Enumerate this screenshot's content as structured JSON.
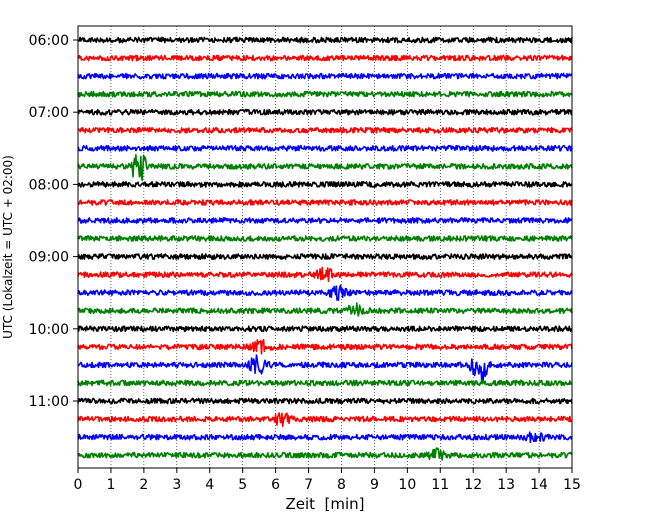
{
  "chart_data": {
    "type": "line",
    "title": "",
    "xlabel": "Zeit  [min]",
    "ylabel": "UTC (Lokalzeit = UTC + 02:00)",
    "xlim": [
      0,
      15
    ],
    "x_ticks": [
      0,
      1,
      2,
      3,
      4,
      5,
      6,
      7,
      8,
      9,
      10,
      11,
      12,
      13,
      14,
      15
    ],
    "y_tick_labels": [
      "06:00",
      "07:00",
      "08:00",
      "09:00",
      "10:00",
      "11:00"
    ],
    "grid": "vertical dotted at each minute",
    "trace_interval_min": 15,
    "trace_colors": [
      "#000000",
      "#ff0000",
      "#0000ff",
      "#008000"
    ],
    "traces": [
      {
        "start": "06:00",
        "color": "#000000"
      },
      {
        "start": "06:15",
        "color": "#ff0000"
      },
      {
        "start": "06:30",
        "color": "#0000ff"
      },
      {
        "start": "06:45",
        "color": "#008000"
      },
      {
        "start": "07:00",
        "color": "#000000"
      },
      {
        "start": "07:15",
        "color": "#ff0000"
      },
      {
        "start": "07:30",
        "color": "#0000ff"
      },
      {
        "start": "07:45",
        "color": "#008000",
        "events": [
          {
            "t": 1.85,
            "amp": 0.95
          }
        ]
      },
      {
        "start": "08:00",
        "color": "#000000"
      },
      {
        "start": "08:15",
        "color": "#ff0000"
      },
      {
        "start": "08:30",
        "color": "#0000ff"
      },
      {
        "start": "08:45",
        "color": "#008000"
      },
      {
        "start": "09:00",
        "color": "#000000"
      },
      {
        "start": "09:15",
        "color": "#ff0000",
        "events": [
          {
            "t": 7.5,
            "amp": 0.35
          }
        ]
      },
      {
        "start": "09:30",
        "color": "#0000ff",
        "events": [
          {
            "t": 7.9,
            "amp": 0.35
          }
        ]
      },
      {
        "start": "09:45",
        "color": "#008000",
        "events": [
          {
            "t": 8.4,
            "amp": 0.35
          }
        ]
      },
      {
        "start": "10:00",
        "color": "#000000"
      },
      {
        "start": "10:15",
        "color": "#ff0000",
        "events": [
          {
            "t": 5.55,
            "amp": 0.35
          }
        ]
      },
      {
        "start": "10:30",
        "color": "#0000ff",
        "events": [
          {
            "t": 5.45,
            "amp": 0.55
          },
          {
            "t": 12.2,
            "amp": 1.1
          }
        ]
      },
      {
        "start": "10:45",
        "color": "#008000"
      },
      {
        "start": "11:00",
        "color": "#000000"
      },
      {
        "start": "11:15",
        "color": "#ff0000",
        "events": [
          {
            "t": 6.2,
            "amp": 0.35
          }
        ]
      },
      {
        "start": "11:30",
        "color": "#0000ff",
        "events": [
          {
            "t": 13.9,
            "amp": 0.3
          }
        ]
      },
      {
        "start": "11:45",
        "color": "#008000",
        "events": [
          {
            "t": 10.9,
            "amp": 0.3
          }
        ]
      }
    ]
  }
}
